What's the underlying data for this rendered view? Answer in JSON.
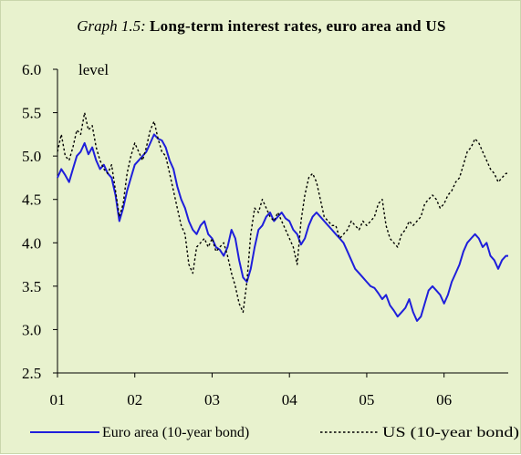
{
  "title": {
    "lead": "Graph 1.5:",
    "main": "Long-term interest rates, euro area and US"
  },
  "colors": {
    "background": "#e8f2ce",
    "euro": "#1f1fdb",
    "us": "#000000"
  },
  "chart_data": {
    "type": "line",
    "ylabel": "level",
    "ylim": [
      2.5,
      6.0
    ],
    "yticks": [
      "2.5",
      "3.0",
      "3.5",
      "4.0",
      "4.5",
      "5.0",
      "5.5",
      "6.0"
    ],
    "xticks": [
      "01",
      "02",
      "03",
      "04",
      "05",
      "06"
    ],
    "xlim": [
      2001.0,
      2006.83
    ],
    "grid": false,
    "legend": "bottom",
    "series": [
      {
        "name": "Euro area (10-year bond)",
        "color": "#1f1fdb",
        "style": "solid",
        "x": [
          2001.0,
          2001.05,
          2001.1,
          2001.15,
          2001.2,
          2001.25,
          2001.3,
          2001.35,
          2001.4,
          2001.45,
          2001.5,
          2001.55,
          2001.6,
          2001.65,
          2001.7,
          2001.75,
          2001.8,
          2001.85,
          2001.9,
          2001.95,
          2002.0,
          2002.05,
          2002.1,
          2002.15,
          2002.2,
          2002.25,
          2002.3,
          2002.35,
          2002.4,
          2002.45,
          2002.5,
          2002.55,
          2002.6,
          2002.65,
          2002.7,
          2002.75,
          2002.8,
          2002.85,
          2002.9,
          2002.95,
          2003.0,
          2003.05,
          2003.1,
          2003.15,
          2003.2,
          2003.25,
          2003.3,
          2003.35,
          2003.4,
          2003.45,
          2003.5,
          2003.55,
          2003.6,
          2003.65,
          2003.7,
          2003.75,
          2003.8,
          2003.85,
          2003.9,
          2003.95,
          2004.0,
          2004.05,
          2004.1,
          2004.15,
          2004.2,
          2004.25,
          2004.3,
          2004.35,
          2004.4,
          2004.45,
          2004.5,
          2004.55,
          2004.6,
          2004.65,
          2004.7,
          2004.75,
          2004.8,
          2004.85,
          2004.9,
          2004.95,
          2005.0,
          2005.05,
          2005.1,
          2005.15,
          2005.2,
          2005.25,
          2005.3,
          2005.35,
          2005.4,
          2005.45,
          2005.5,
          2005.55,
          2005.6,
          2005.65,
          2005.7,
          2005.75,
          2005.8,
          2005.85,
          2005.9,
          2005.95,
          2006.0,
          2006.05,
          2006.1,
          2006.15,
          2006.2,
          2006.25,
          2006.3,
          2006.35,
          2006.4,
          2006.45,
          2006.5,
          2006.55,
          2006.6,
          2006.65,
          2006.7,
          2006.75,
          2006.8,
          2006.83
        ],
        "values": [
          4.75,
          4.85,
          4.78,
          4.7,
          4.85,
          5.0,
          5.05,
          5.15,
          5.02,
          5.1,
          4.95,
          4.85,
          4.9,
          4.8,
          4.75,
          4.55,
          4.25,
          4.4,
          4.6,
          4.75,
          4.9,
          4.95,
          5.0,
          5.05,
          5.15,
          5.25,
          5.2,
          5.18,
          5.1,
          4.95,
          4.85,
          4.65,
          4.5,
          4.4,
          4.25,
          4.15,
          4.1,
          4.2,
          4.25,
          4.1,
          4.05,
          3.95,
          3.92,
          3.85,
          3.95,
          4.15,
          4.05,
          3.8,
          3.6,
          3.55,
          3.7,
          3.95,
          4.15,
          4.2,
          4.3,
          4.35,
          4.25,
          4.3,
          4.35,
          4.28,
          4.25,
          4.15,
          4.1,
          3.98,
          4.05,
          4.2,
          4.3,
          4.35,
          4.3,
          4.25,
          4.2,
          4.15,
          4.1,
          4.05,
          4.0,
          3.9,
          3.8,
          3.7,
          3.65,
          3.6,
          3.55,
          3.5,
          3.48,
          3.42,
          3.35,
          3.4,
          3.28,
          3.22,
          3.15,
          3.2,
          3.25,
          3.35,
          3.2,
          3.1,
          3.15,
          3.3,
          3.45,
          3.5,
          3.45,
          3.4,
          3.3,
          3.4,
          3.55,
          3.65,
          3.75,
          3.9,
          4.0,
          4.05,
          4.1,
          4.05,
          3.95,
          4.0,
          3.85,
          3.8,
          3.7,
          3.8,
          3.85,
          3.85
        ]
      },
      {
        "name": "US (10-year bond)",
        "color": "#000000",
        "style": "dotted",
        "x": [
          2001.0,
          2001.05,
          2001.1,
          2001.15,
          2001.2,
          2001.25,
          2001.3,
          2001.35,
          2001.4,
          2001.45,
          2001.5,
          2001.55,
          2001.6,
          2001.65,
          2001.7,
          2001.75,
          2001.8,
          2001.85,
          2001.9,
          2001.95,
          2002.0,
          2002.05,
          2002.1,
          2002.15,
          2002.2,
          2002.25,
          2002.3,
          2002.35,
          2002.4,
          2002.45,
          2002.5,
          2002.55,
          2002.6,
          2002.65,
          2002.7,
          2002.75,
          2002.8,
          2002.85,
          2002.9,
          2002.95,
          2003.0,
          2003.05,
          2003.1,
          2003.15,
          2003.2,
          2003.25,
          2003.3,
          2003.35,
          2003.4,
          2003.45,
          2003.5,
          2003.55,
          2003.6,
          2003.65,
          2003.7,
          2003.75,
          2003.8,
          2003.85,
          2003.9,
          2003.95,
          2004.0,
          2004.05,
          2004.1,
          2004.15,
          2004.2,
          2004.25,
          2004.3,
          2004.35,
          2004.4,
          2004.45,
          2004.5,
          2004.55,
          2004.6,
          2004.65,
          2004.7,
          2004.75,
          2004.8,
          2004.85,
          2004.9,
          2004.95,
          2005.0,
          2005.05,
          2005.1,
          2005.15,
          2005.2,
          2005.25,
          2005.3,
          2005.35,
          2005.4,
          2005.45,
          2005.5,
          2005.55,
          2005.6,
          2005.65,
          2005.7,
          2005.75,
          2005.8,
          2005.85,
          2005.9,
          2005.95,
          2006.0,
          2006.05,
          2006.1,
          2006.15,
          2006.2,
          2006.25,
          2006.3,
          2006.35,
          2006.4,
          2006.45,
          2006.5,
          2006.55,
          2006.6,
          2006.65,
          2006.7,
          2006.75,
          2006.8,
          2006.83
        ],
        "values": [
          5.05,
          5.25,
          5.0,
          4.95,
          5.1,
          5.3,
          5.25,
          5.5,
          5.3,
          5.35,
          5.1,
          4.95,
          4.85,
          4.8,
          4.9,
          4.6,
          4.3,
          4.45,
          4.8,
          5.0,
          5.15,
          5.05,
          4.95,
          5.1,
          5.3,
          5.4,
          5.2,
          5.05,
          5.0,
          4.8,
          4.6,
          4.4,
          4.2,
          4.1,
          3.75,
          3.65,
          3.95,
          4.0,
          4.05,
          3.95,
          4.05,
          3.9,
          3.95,
          4.0,
          3.85,
          3.65,
          3.5,
          3.3,
          3.2,
          3.55,
          4.1,
          4.4,
          4.35,
          4.5,
          4.4,
          4.3,
          4.25,
          4.35,
          4.25,
          4.15,
          4.05,
          3.95,
          3.75,
          4.25,
          4.55,
          4.75,
          4.8,
          4.7,
          4.5,
          4.3,
          4.25,
          4.2,
          4.2,
          4.05,
          4.1,
          4.15,
          4.25,
          4.2,
          4.15,
          4.25,
          4.2,
          4.25,
          4.3,
          4.45,
          4.5,
          4.2,
          4.05,
          4.0,
          3.95,
          4.1,
          4.15,
          4.25,
          4.2,
          4.25,
          4.3,
          4.45,
          4.5,
          4.55,
          4.5,
          4.4,
          4.45,
          4.55,
          4.6,
          4.7,
          4.75,
          4.9,
          5.05,
          5.1,
          5.2,
          5.15,
          5.05,
          4.95,
          4.85,
          4.8,
          4.7,
          4.75,
          4.8,
          4.8
        ]
      }
    ]
  }
}
